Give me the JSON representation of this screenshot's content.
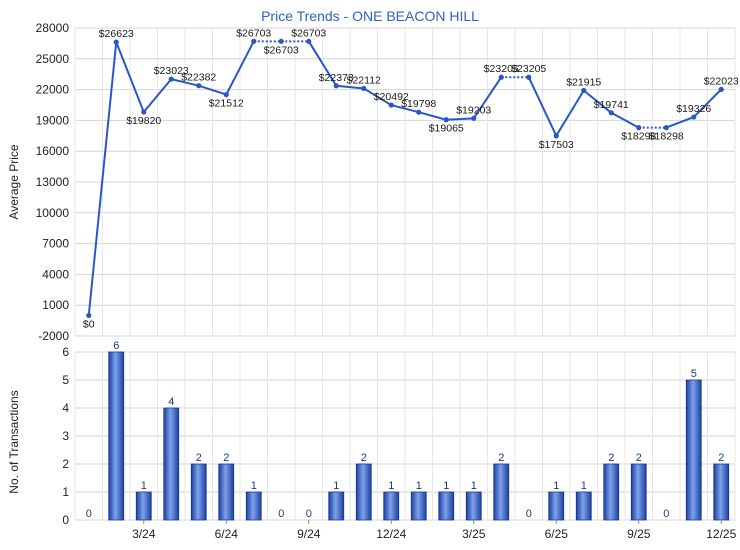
{
  "chart_data": [
    {
      "type": "line",
      "title": "Price Trends - ONE BEACON HILL",
      "ylabel": "Average Price",
      "ylim": [
        -2000,
        28000
      ],
      "yticks": [
        -2000,
        1000,
        4000,
        7000,
        10000,
        13000,
        16000,
        19000,
        22000,
        25000,
        28000
      ],
      "grid": true,
      "series": [
        {
          "color": "#2a56c6",
          "points": [
            {
              "x": 0,
              "y": 0,
              "label": "$0"
            },
            {
              "x": 1,
              "y": 26623,
              "label": "$26623"
            },
            {
              "x": 2,
              "y": 19820,
              "label": "$19820"
            },
            {
              "x": 3,
              "y": 23023,
              "label": "$23023"
            },
            {
              "x": 4,
              "y": 22382,
              "label": "$22382"
            },
            {
              "x": 5,
              "y": 21512,
              "label": "$21512"
            },
            {
              "x": 6,
              "y": 26703,
              "label": "$26703"
            },
            {
              "x": 7,
              "y": 26703,
              "label": "$26703"
            },
            {
              "x": 8,
              "y": 26703,
              "label": "$26703"
            },
            {
              "x": 9,
              "y": 22373,
              "label": "$22373"
            },
            {
              "x": 10,
              "y": 22112,
              "label": "$22112"
            },
            {
              "x": 11,
              "y": 20492,
              "label": "$20492"
            },
            {
              "x": 12,
              "y": 19798,
              "label": "$19798"
            },
            {
              "x": 13,
              "y": 19065,
              "label": "$19065"
            },
            {
              "x": 14,
              "y": 19203,
              "label": "$19203"
            },
            {
              "x": 15,
              "y": 23205,
              "label": "$23205"
            },
            {
              "x": 16,
              "y": 23205,
              "label": "$23205"
            },
            {
              "x": 17,
              "y": 17503,
              "label": "$17503"
            },
            {
              "x": 18,
              "y": 21915,
              "label": "$21915"
            },
            {
              "x": 19,
              "y": 19741,
              "label": "$19741"
            },
            {
              "x": 20,
              "y": 18298,
              "label": "$18298"
            },
            {
              "x": 21,
              "y": 18298,
              "label": "$18298"
            },
            {
              "x": 22,
              "y": 19326,
              "label": "$19326"
            },
            {
              "x": 23,
              "y": 22023,
              "label": "$22023"
            }
          ]
        }
      ]
    },
    {
      "type": "bar",
      "ylabel": "No. of Transactions",
      "ylim": [
        0,
        6
      ],
      "yticks": [
        0,
        1,
        2,
        3,
        4,
        5,
        6
      ],
      "grid": true,
      "color": "#2a56c6",
      "categories": [
        "",
        "",
        "3/24",
        "",
        "",
        "6/24",
        "",
        "",
        "9/24",
        "",
        "",
        "12/24",
        "",
        "",
        "3/25",
        "",
        "",
        "6/25",
        "",
        "",
        "9/25",
        "",
        "",
        "12/25"
      ],
      "values": [
        0,
        6,
        1,
        4,
        2,
        2,
        1,
        0,
        0,
        1,
        2,
        1,
        1,
        1,
        1,
        2,
        0,
        1,
        1,
        2,
        2,
        0,
        5,
        2
      ]
    }
  ]
}
